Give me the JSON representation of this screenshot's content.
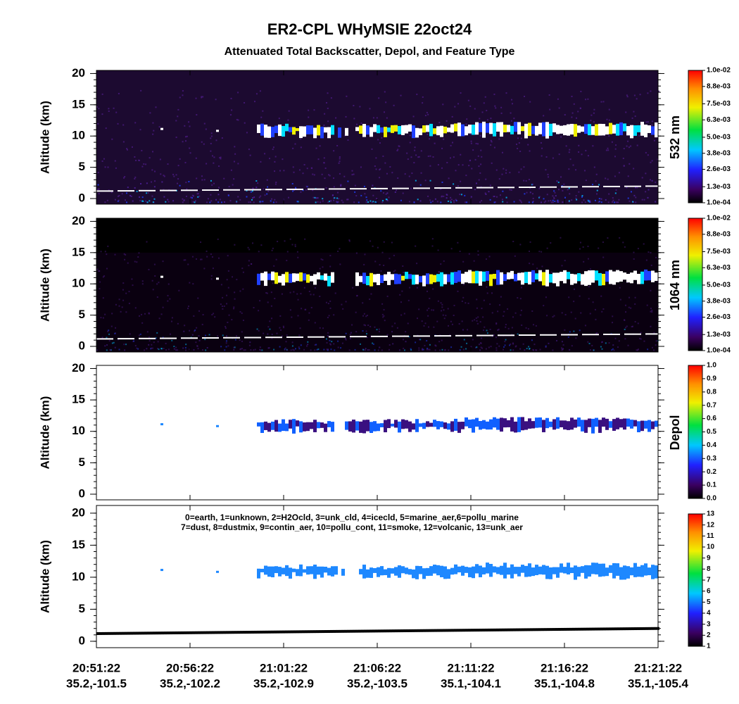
{
  "header": {
    "title": "ER2-CPL WHyMSIE 22oct24",
    "subtitle": "Attenuated Total Backscatter, Depol, and Feature Type"
  },
  "chart_data": [
    {
      "type": "heatmap",
      "ylabel": "Altitude (km)",
      "ylim": [
        -0.9,
        20.5
      ],
      "yticks": [
        0,
        5,
        10,
        15,
        20
      ],
      "colorbar_label": "532 nm",
      "clim": [
        0.0001,
        0.01
      ],
      "cticks": [
        {
          "value": 0.0001,
          "label": "1.0e-04"
        },
        {
          "value": 0.0013,
          "label": "1.3e-03"
        },
        {
          "value": 0.0026,
          "label": "2.6e-03"
        },
        {
          "value": 0.0038,
          "label": "3.8e-03"
        },
        {
          "value": 0.005,
          "label": "5.0e-03"
        },
        {
          "value": 0.0063,
          "label": "6.3e-03"
        },
        {
          "value": 0.0075,
          "label": "7.5e-03"
        },
        {
          "value": 0.0088,
          "label": "8.8e-03"
        },
        {
          "value": 0.01,
          "label": "1.0e-02"
        }
      ]
    },
    {
      "type": "heatmap",
      "ylabel": "Altitude (km)",
      "ylim": [
        -0.9,
        20.5
      ],
      "yticks": [
        0,
        5,
        10,
        15,
        20
      ],
      "colorbar_label": "1064 nm",
      "clim": [
        0.0001,
        0.01
      ],
      "cticks": [
        {
          "value": 0.0001,
          "label": "1.0e-04"
        },
        {
          "value": 0.0013,
          "label": "1.3e-03"
        },
        {
          "value": 0.0026,
          "label": "2.6e-03"
        },
        {
          "value": 0.0038,
          "label": "3.8e-03"
        },
        {
          "value": 0.005,
          "label": "5.0e-03"
        },
        {
          "value": 0.0063,
          "label": "6.3e-03"
        },
        {
          "value": 0.0075,
          "label": "7.5e-03"
        },
        {
          "value": 0.0088,
          "label": "8.8e-03"
        },
        {
          "value": 0.01,
          "label": "1.0e-02"
        }
      ]
    },
    {
      "type": "heatmap",
      "ylabel": "Altitude (km)",
      "ylim": [
        -0.9,
        20.5
      ],
      "yticks": [
        0,
        5,
        10,
        15,
        20
      ],
      "colorbar_label": "Depol",
      "clim": [
        0,
        1
      ],
      "cticks": [
        {
          "value": 0,
          "label": "0.0"
        },
        0.1,
        0.2,
        0.3,
        0.4,
        0.5,
        0.6,
        0.7,
        0.8,
        0.9,
        {
          "value": 1,
          "label": "1.0"
        }
      ]
    },
    {
      "type": "heatmap",
      "ylabel": "Altitude (km)",
      "ylim": [
        -1,
        21.2
      ],
      "yticks": [
        0,
        5,
        10,
        15,
        20
      ],
      "clim": [
        1,
        13
      ],
      "cticks": [
        1,
        2,
        3,
        4,
        5,
        6,
        7,
        8,
        9,
        10,
        11,
        12,
        13
      ],
      "annotations": [
        "0=earth, 1=unknown, 2=H2Ocld, 3=unk_cld, 4=icecld, 5=marine_aer,6=pollu_marine",
        "7=dust, 8=dustmix, 9=contin_aer, 10=pollu_cont, 11=smoke, 12=volcanic, 13=unk_aer"
      ],
      "categories": [
        "20:51:22",
        "20:56:22",
        "21:01:22",
        "21:06:22",
        "21:11:22",
        "21:16:22",
        "21:21:22"
      ],
      "coords": [
        "35.2,-101.5",
        "35.2,-102.2",
        "35.2,-102.9",
        "35.2,-103.5",
        "35.1,-104.1",
        "35.1,-104.8",
        "35.1,-105.4"
      ]
    }
  ]
}
